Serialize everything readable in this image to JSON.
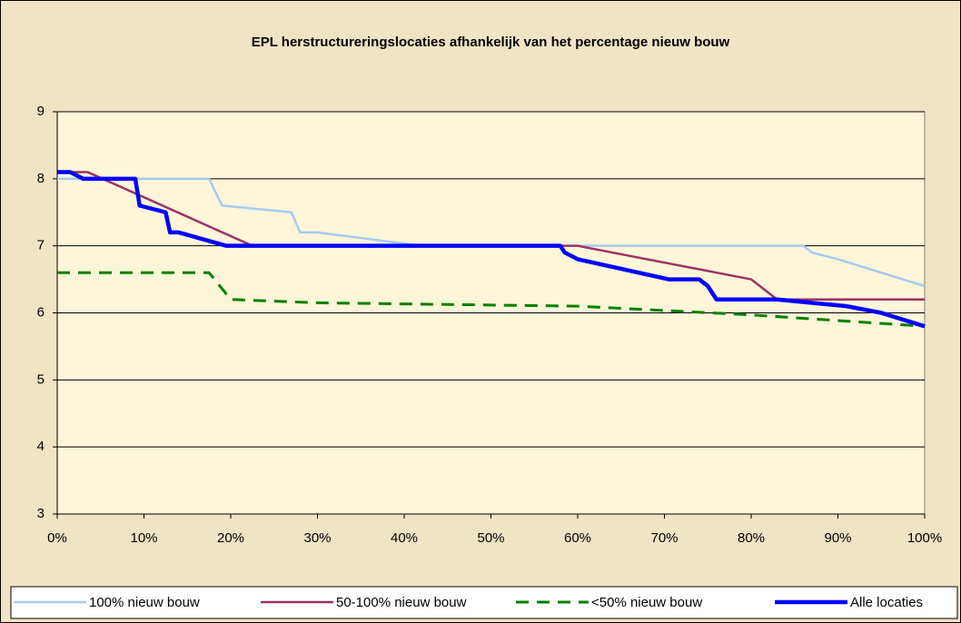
{
  "chart_data": {
    "type": "line",
    "title": "EPL herstructureringslocaties afhankelijk van het percentage nieuw bouw",
    "xlim": [
      0,
      100
    ],
    "xticks": [
      {
        "value": 0,
        "label": "0%"
      },
      {
        "value": 10,
        "label": "10%"
      },
      {
        "value": 20,
        "label": "20%"
      },
      {
        "value": 30,
        "label": "30%"
      },
      {
        "value": 40,
        "label": "40%"
      },
      {
        "value": 50,
        "label": "50%"
      },
      {
        "value": 60,
        "label": "60%"
      },
      {
        "value": 70,
        "label": "70%"
      },
      {
        "value": 80,
        "label": "80%"
      },
      {
        "value": 90,
        "label": "90%"
      },
      {
        "value": 100,
        "label": "100%"
      }
    ],
    "ylim": [
      3,
      9
    ],
    "yticks": [
      3,
      4,
      5,
      6,
      7,
      8,
      9
    ],
    "grid": true,
    "legend": "bottom",
    "series": [
      {
        "name": "100% nieuw bouw",
        "color": "#a6caf0",
        "line_width": 2.5,
        "dashed": false,
        "x": [
          0,
          17.5,
          19,
          27,
          28,
          30,
          42,
          86,
          87,
          90,
          100
        ],
        "values": [
          8,
          8,
          7.6,
          7.5,
          7.2,
          7.2,
          7,
          7,
          6.9,
          6.8,
          6.4
        ]
      },
      {
        "name": "50-100% nieuw bouw",
        "color": "#993366",
        "line_width": 2.5,
        "dashed": false,
        "x": [
          0,
          3.5,
          22.5,
          60,
          80,
          83,
          100
        ],
        "values": [
          8.1,
          8.1,
          7,
          7,
          6.5,
          6.2,
          6.2
        ]
      },
      {
        "name": "<50% nieuw bouw",
        "color": "#008000",
        "line_width": 3,
        "dashed": true,
        "x": [
          0,
          17.5,
          20,
          30,
          60,
          80,
          100
        ],
        "values": [
          6.6,
          6.6,
          6.2,
          6.15,
          6.1,
          5.97,
          5.8
        ]
      },
      {
        "name": "Alle locaties",
        "color": "#0000ff",
        "line_width": 4.5,
        "dashed": false,
        "x": [
          0,
          1.5,
          3,
          9,
          9.5,
          12.5,
          13,
          14,
          19.5,
          58,
          58.5,
          60,
          67,
          70.5,
          74,
          75,
          76,
          83,
          91,
          95,
          100
        ],
        "values": [
          8.1,
          8.1,
          8,
          8,
          7.6,
          7.5,
          7.2,
          7.2,
          7,
          7,
          6.9,
          6.8,
          6.6,
          6.5,
          6.5,
          6.4,
          6.2,
          6.2,
          6.1,
          6,
          5.8
        ]
      }
    ]
  }
}
